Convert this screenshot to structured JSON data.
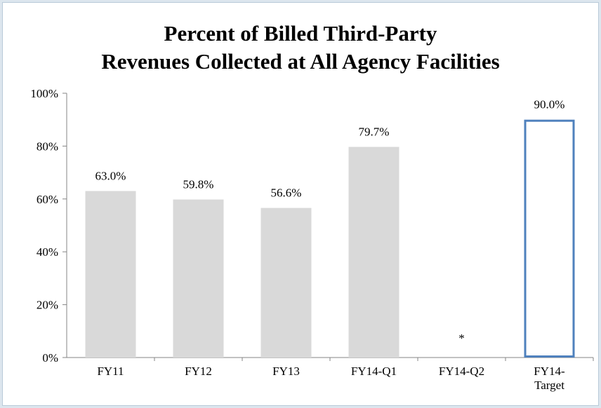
{
  "chart_data": {
    "type": "bar",
    "title": "Percent of Billed Third-Party\nRevenues Collected at All Agency Facilities",
    "categories": [
      "FY11",
      "FY12",
      "FY13",
      "FY14-Q1",
      "FY14-Q2",
      "FY14-\nTarget"
    ],
    "values": [
      63.0,
      59.8,
      56.6,
      79.7,
      null,
      90.0
    ],
    "value_labels": [
      "63.0%",
      "59.8%",
      "56.6%",
      "79.7%",
      "*",
      "90.0%"
    ],
    "colors": [
      "#d9d9d9",
      "#d9d9d9",
      "#d9d9d9",
      "#d9d9d9",
      "#d9d9d9",
      "#ffffff"
    ],
    "edgecolors": [
      null,
      null,
      null,
      null,
      null,
      "#4f81bd"
    ],
    "ylim": [
      0,
      100
    ],
    "yticks": [
      {
        "value": 0,
        "label": "0%"
      },
      {
        "value": 20,
        "label": "20%"
      },
      {
        "value": 40,
        "label": "40%"
      },
      {
        "value": 60,
        "label": "60%"
      },
      {
        "value": 80,
        "label": "80%"
      },
      {
        "value": 100,
        "label": "100%"
      }
    ],
    "grid": false
  }
}
